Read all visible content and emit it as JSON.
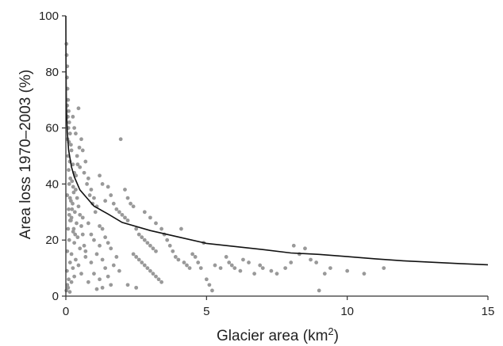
{
  "chart_data": {
    "type": "scatter",
    "xlabel": "Glacier area (km²)",
    "xlabel_base": "Glacier area (km",
    "xlabel_sup": "2",
    "xlabel_end": ")",
    "ylabel": "Area loss 1970–2003 (%)",
    "xlim": [
      0,
      15
    ],
    "ylim": [
      0,
      100
    ],
    "xticks": [
      0,
      5,
      10,
      15
    ],
    "yticks": [
      0,
      20,
      40,
      60,
      80,
      100
    ],
    "grid": false,
    "colors": {
      "points": "#999999",
      "curve": "#111111",
      "axis": "#333333"
    },
    "series": [
      {
        "kind": "points",
        "points": [
          [
            0.02,
            90
          ],
          [
            0.03,
            86
          ],
          [
            0.05,
            82
          ],
          [
            0.04,
            78
          ],
          [
            0.06,
            74
          ],
          [
            0.08,
            70
          ],
          [
            0.05,
            68
          ],
          [
            0.1,
            66
          ],
          [
            0.07,
            64
          ],
          [
            0.12,
            62
          ],
          [
            0.09,
            60
          ],
          [
            0.15,
            58
          ],
          [
            0.06,
            56
          ],
          [
            0.11,
            55
          ],
          [
            0.18,
            54
          ],
          [
            0.2,
            52
          ],
          [
            0.08,
            50
          ],
          [
            0.14,
            48
          ],
          [
            0.25,
            47
          ],
          [
            0.1,
            45
          ],
          [
            0.3,
            44
          ],
          [
            0.16,
            42
          ],
          [
            0.22,
            41
          ],
          [
            0.12,
            40
          ],
          [
            0.35,
            38
          ],
          [
            0.28,
            37
          ],
          [
            0.05,
            36
          ],
          [
            0.4,
            35
          ],
          [
            0.18,
            34
          ],
          [
            0.24,
            33
          ],
          [
            0.45,
            32
          ],
          [
            0.1,
            31
          ],
          [
            0.32,
            30
          ],
          [
            0.5,
            29
          ],
          [
            0.2,
            28
          ],
          [
            0.15,
            27
          ],
          [
            0.38,
            26
          ],
          [
            0.55,
            25
          ],
          [
            0.08,
            24
          ],
          [
            0.26,
            23
          ],
          [
            0.6,
            22
          ],
          [
            0.42,
            21
          ],
          [
            0.12,
            20
          ],
          [
            0.3,
            19
          ],
          [
            0.65,
            18
          ],
          [
            0.5,
            17
          ],
          [
            0.05,
            16
          ],
          [
            0.2,
            15
          ],
          [
            0.7,
            14
          ],
          [
            0.35,
            13
          ],
          [
            0.15,
            12
          ],
          [
            0.45,
            11
          ],
          [
            0.25,
            10
          ],
          [
            0.04,
            9
          ],
          [
            0.55,
            8
          ],
          [
            0.3,
            7
          ],
          [
            0.1,
            6
          ],
          [
            0.2,
            5
          ],
          [
            0.05,
            4
          ],
          [
            0.08,
            3
          ],
          [
            0.02,
            2
          ],
          [
            0.14,
            1.5
          ],
          [
            0.3,
            60
          ],
          [
            0.45,
            67
          ],
          [
            0.25,
            64
          ],
          [
            0.35,
            58
          ],
          [
            0.55,
            56
          ],
          [
            0.6,
            52
          ],
          [
            0.4,
            50
          ],
          [
            0.7,
            48
          ],
          [
            0.5,
            46
          ],
          [
            0.65,
            44
          ],
          [
            0.8,
            42
          ],
          [
            0.75,
            40
          ],
          [
            0.9,
            38
          ],
          [
            0.85,
            36
          ],
          [
            1.0,
            35
          ],
          [
            0.95,
            33
          ],
          [
            1.1,
            32
          ],
          [
            1.05,
            30
          ],
          [
            0.6,
            28
          ],
          [
            0.8,
            26
          ],
          [
            1.2,
            25
          ],
          [
            1.3,
            24
          ],
          [
            0.9,
            22
          ],
          [
            1.4,
            21
          ],
          [
            1.0,
            20
          ],
          [
            1.5,
            19
          ],
          [
            1.2,
            18
          ],
          [
            1.6,
            17
          ],
          [
            0.7,
            16
          ],
          [
            1.1,
            15
          ],
          [
            1.8,
            14
          ],
          [
            1.3,
            13
          ],
          [
            0.9,
            12
          ],
          [
            1.7,
            11
          ],
          [
            1.4,
            10
          ],
          [
            1.9,
            9
          ],
          [
            1.0,
            8
          ],
          [
            1.5,
            7
          ],
          [
            1.2,
            6
          ],
          [
            0.8,
            5
          ],
          [
            1.6,
            4
          ],
          [
            1.3,
            3
          ],
          [
            1.1,
            2.5
          ],
          [
            1.2,
            43
          ],
          [
            1.3,
            40
          ],
          [
            1.5,
            39
          ],
          [
            1.6,
            36
          ],
          [
            1.4,
            34
          ],
          [
            1.7,
            33
          ],
          [
            1.8,
            31
          ],
          [
            1.9,
            30
          ],
          [
            1.95,
            56
          ],
          [
            2.0,
            29
          ],
          [
            2.1,
            28
          ],
          [
            2.2,
            27
          ],
          [
            2.1,
            38
          ],
          [
            2.2,
            35
          ],
          [
            2.3,
            33
          ],
          [
            2.4,
            32
          ],
          [
            2.5,
            24
          ],
          [
            2.6,
            22
          ],
          [
            2.7,
            21
          ],
          [
            2.8,
            20
          ],
          [
            2.9,
            19
          ],
          [
            3.0,
            18
          ],
          [
            3.1,
            17
          ],
          [
            3.2,
            16
          ],
          [
            2.4,
            15
          ],
          [
            2.5,
            14
          ],
          [
            2.6,
            13
          ],
          [
            2.7,
            12
          ],
          [
            2.8,
            11
          ],
          [
            2.9,
            10
          ],
          [
            3.0,
            9
          ],
          [
            3.1,
            8
          ],
          [
            3.2,
            7
          ],
          [
            3.3,
            6
          ],
          [
            3.4,
            5
          ],
          [
            2.2,
            4
          ],
          [
            2.5,
            3
          ],
          [
            2.8,
            30
          ],
          [
            3.0,
            28
          ],
          [
            3.2,
            26
          ],
          [
            3.4,
            24
          ],
          [
            3.5,
            22
          ],
          [
            3.6,
            20
          ],
          [
            3.7,
            18
          ],
          [
            3.8,
            16
          ],
          [
            3.9,
            14
          ],
          [
            4.0,
            13
          ],
          [
            4.1,
            24
          ],
          [
            4.2,
            12
          ],
          [
            4.3,
            11
          ],
          [
            4.4,
            10
          ],
          [
            4.5,
            15
          ],
          [
            4.6,
            14
          ],
          [
            4.7,
            12
          ],
          [
            4.8,
            10
          ],
          [
            4.9,
            19
          ],
          [
            5.0,
            6
          ],
          [
            5.1,
            4
          ],
          [
            5.2,
            2
          ],
          [
            5.3,
            11
          ],
          [
            5.5,
            10
          ],
          [
            5.7,
            14
          ],
          [
            5.8,
            12
          ],
          [
            5.9,
            11
          ],
          [
            6.0,
            10
          ],
          [
            6.2,
            9
          ],
          [
            6.3,
            13
          ],
          [
            6.5,
            12
          ],
          [
            6.7,
            8
          ],
          [
            6.9,
            11
          ],
          [
            7.0,
            10
          ],
          [
            7.3,
            9
          ],
          [
            7.5,
            8
          ],
          [
            7.8,
            10
          ],
          [
            8.0,
            12
          ],
          [
            8.1,
            18
          ],
          [
            8.3,
            15
          ],
          [
            8.5,
            17
          ],
          [
            8.7,
            13
          ],
          [
            8.9,
            12
          ],
          [
            9.0,
            2
          ],
          [
            9.2,
            8
          ],
          [
            9.4,
            10
          ],
          [
            10.0,
            9
          ],
          [
            10.6,
            8
          ],
          [
            11.3,
            10
          ],
          [
            0.15,
            35
          ],
          [
            0.22,
            31
          ],
          [
            0.18,
            27
          ],
          [
            0.28,
            24
          ],
          [
            0.33,
            22
          ],
          [
            0.12,
            29
          ],
          [
            0.26,
            39
          ],
          [
            0.36,
            43
          ],
          [
            0.42,
            47
          ],
          [
            0.48,
            53
          ]
        ]
      },
      {
        "kind": "curve",
        "points": [
          [
            0.001,
            100
          ],
          [
            0.005,
            84
          ],
          [
            0.01,
            76
          ],
          [
            0.02,
            68
          ],
          [
            0.05,
            58.6
          ],
          [
            0.1,
            52.1
          ],
          [
            0.2,
            46.1
          ],
          [
            0.3,
            42.6
          ],
          [
            0.5,
            37.9
          ],
          [
            0.75,
            35.0
          ],
          [
            1,
            32.1
          ],
          [
            1.5,
            29.3
          ],
          [
            2,
            26.3
          ],
          [
            3,
            23.4
          ],
          [
            4,
            21.1
          ],
          [
            5,
            18.8
          ],
          [
            6,
            17.7
          ],
          [
            7,
            16.6
          ],
          [
            8,
            15.4
          ],
          [
            9,
            14.9
          ],
          [
            10,
            14.1
          ],
          [
            11,
            13.3
          ],
          [
            12,
            12.6
          ],
          [
            13,
            12.1
          ],
          [
            14,
            11.6
          ],
          [
            15,
            11.2
          ]
        ]
      }
    ]
  }
}
